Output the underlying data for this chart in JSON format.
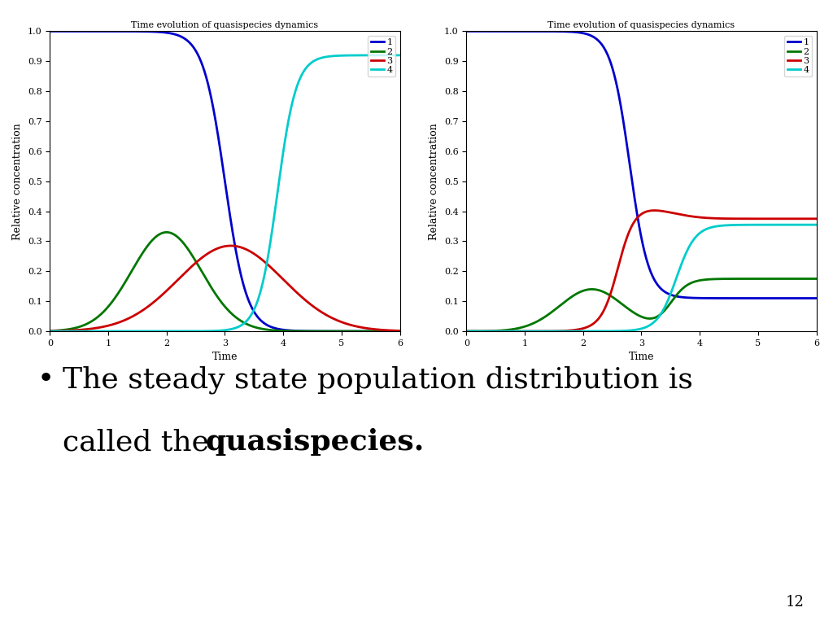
{
  "title": "Time evolution of quasispecies dynamics",
  "xlabel": "Time",
  "ylabel": "Relative concentration",
  "xlim": [
    0,
    6
  ],
  "ylim": [
    0,
    1
  ],
  "xticks": [
    0,
    1,
    2,
    3,
    4,
    5,
    6
  ],
  "yticks": [
    0,
    0.1,
    0.2,
    0.3,
    0.4,
    0.5,
    0.6,
    0.7,
    0.8,
    0.9,
    1
  ],
  "colors": {
    "1": "#0000cc",
    "2": "#007700",
    "3": "#cc0000",
    "4": "#00cccc"
  },
  "legend_labels": [
    "1",
    "2",
    "3",
    "4"
  ],
  "page_number": "12",
  "background_color": "#ffffff"
}
